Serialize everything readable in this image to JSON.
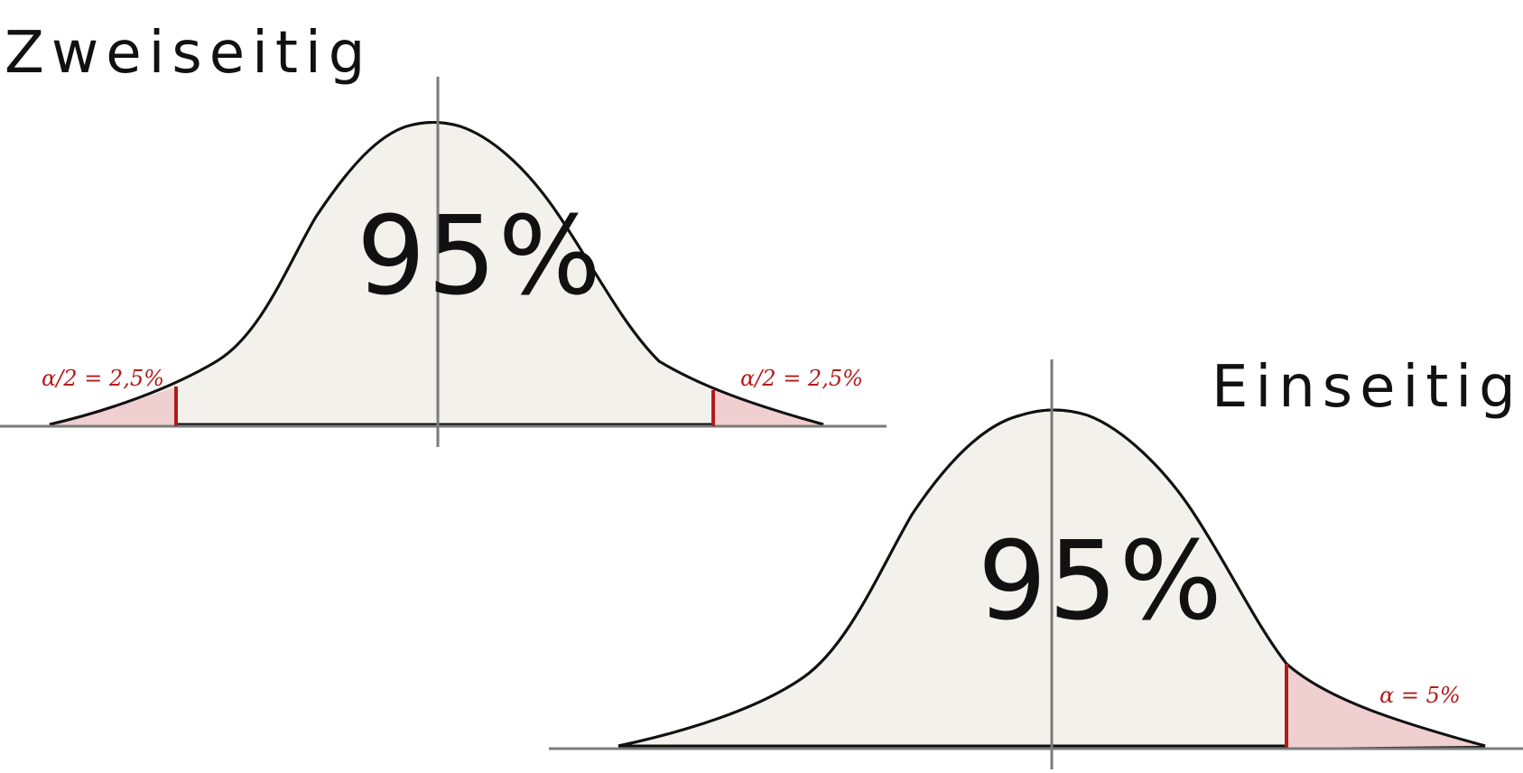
{
  "diagrams": [
    {
      "title": "Zweiseitig",
      "center_label": "95%",
      "left_tail_label": "α/2 = 2,5%",
      "right_tail_label": "α/2 = 2,5%"
    },
    {
      "title": "Einseitig",
      "center_label": "95%",
      "right_tail_label": "α = 5%"
    }
  ],
  "colors": {
    "curve_fill": "#f3f1ec",
    "tail_fill": "#f0cfd0",
    "critical_line": "#b31b1b",
    "axis": "#7a7a7a",
    "ink": "#111111"
  }
}
